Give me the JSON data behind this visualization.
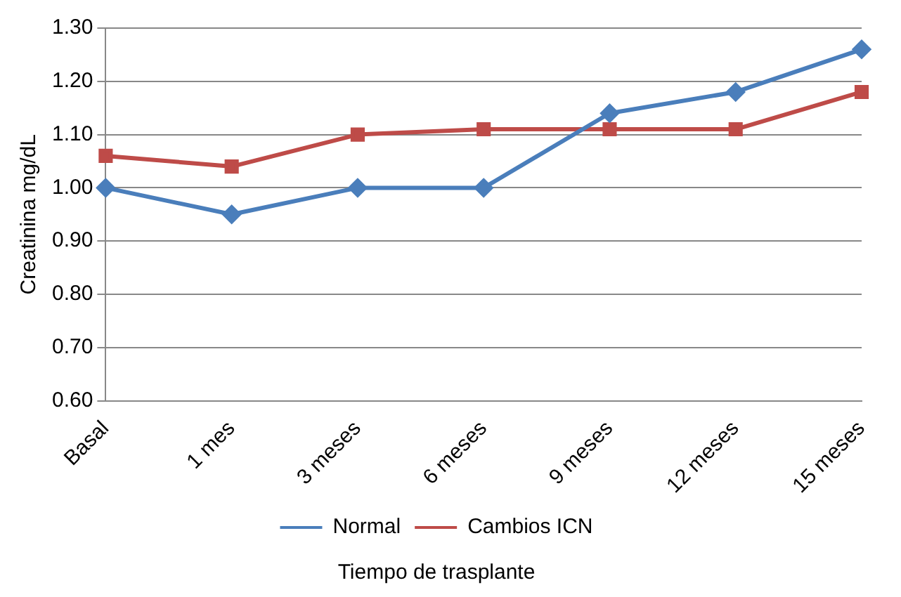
{
  "chart_data": {
    "type": "line",
    "xlabel": "Tiempo de trasplante",
    "ylabel": "Creatinina mg/dL",
    "categories": [
      "Basal",
      "1 mes",
      "3 meses",
      "6 meses",
      "9 meses",
      "12 meses",
      "15 meses"
    ],
    "series": [
      {
        "name": "Normal",
        "color": "#4a7ebb",
        "marker": "diamond",
        "values": [
          1.0,
          0.95,
          1.0,
          1.0,
          1.14,
          1.18,
          1.26
        ]
      },
      {
        "name": "Cambios ICN",
        "color": "#be4b48",
        "marker": "square",
        "values": [
          1.06,
          1.04,
          1.1,
          1.11,
          1.11,
          1.11,
          1.18
        ]
      }
    ],
    "ylim": [
      0.6,
      1.3
    ],
    "yticks": [
      {
        "value": 0.6,
        "label": "0.60"
      },
      {
        "value": 0.7,
        "label": "0.70"
      },
      {
        "value": 0.8,
        "label": "0.80"
      },
      {
        "value": 0.9,
        "label": "0.90"
      },
      {
        "value": 1.0,
        "label": "1.00"
      },
      {
        "value": 1.1,
        "label": "1.10"
      },
      {
        "value": 1.2,
        "label": "1.20"
      },
      {
        "value": 1.3,
        "label": "1.30"
      }
    ],
    "grid": "y",
    "legend": "bottom",
    "line_style": "solid"
  }
}
